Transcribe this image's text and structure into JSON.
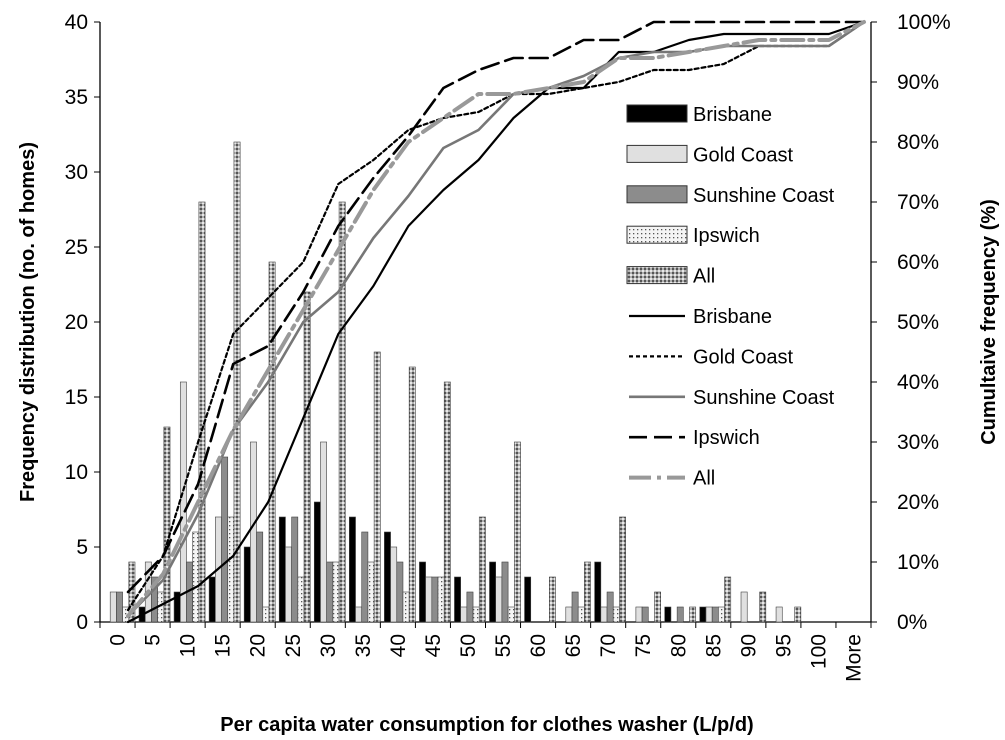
{
  "chart_data": {
    "type": "bar",
    "xlabel": "Per capita water consumption for clothes washer (L/p/d)",
    "ylabel": "Frequency distribution (no. of homes)",
    "y2label": "Cumultaive frequency (%)",
    "ylim": [
      0,
      40
    ],
    "y2lim": [
      0,
      100
    ],
    "y_ticks": [
      "0",
      "5",
      "10",
      "15",
      "20",
      "25",
      "30",
      "35",
      "40"
    ],
    "y2_ticks": [
      "0%",
      "10%",
      "20%",
      "30%",
      "40%",
      "50%",
      "60%",
      "70%",
      "80%",
      "90%",
      "100%"
    ],
    "categories": [
      "0",
      "5",
      "10",
      "15",
      "20",
      "25",
      "30",
      "35",
      "40",
      "45",
      "50",
      "55",
      "60",
      "65",
      "70",
      "75",
      "80",
      "85",
      "90",
      "95",
      "100",
      "More"
    ],
    "bar_series": [
      {
        "name": "Brisbane",
        "color": "#000000",
        "values": [
          0,
          1,
          2,
          3,
          5,
          7,
          8,
          7,
          6,
          4,
          3,
          4,
          3,
          0,
          4,
          0,
          1,
          1,
          0,
          0,
          0,
          0
        ]
      },
      {
        "name": "Gold Coast",
        "color": "#e6e6e6",
        "values": [
          2,
          4,
          16,
          7,
          12,
          5,
          12,
          1,
          5,
          3,
          1,
          3,
          0,
          1,
          1,
          1,
          0,
          1,
          2,
          1,
          0,
          0
        ]
      },
      {
        "name": "Sunshine Coast",
        "color": "#8c8c8c",
        "values": [
          2,
          3,
          4,
          11,
          6,
          7,
          4,
          6,
          4,
          3,
          2,
          4,
          0,
          2,
          2,
          1,
          1,
          1,
          0,
          0,
          0,
          0
        ]
      },
      {
        "name": "Ipswich",
        "color": "#f2f2f2",
        "values": [
          1,
          2,
          6,
          7,
          1,
          3,
          4,
          4,
          2,
          3,
          1,
          1,
          0,
          1,
          1,
          0,
          0,
          1,
          0,
          0,
          0,
          0
        ]
      },
      {
        "name": "All",
        "color": "#9a9a9a",
        "values": [
          4,
          13,
          28,
          32,
          24,
          22,
          28,
          18,
          17,
          16,
          7,
          12,
          3,
          4,
          7,
          2,
          1,
          3,
          2,
          1,
          0,
          0
        ]
      }
    ],
    "cumulative_series": [
      {
        "name": "Brisbane",
        "style": "solid",
        "color": "#000000",
        "values": [
          0,
          3,
          6,
          11,
          20,
          34,
          48,
          56,
          66,
          72,
          77,
          84,
          89,
          89,
          95,
          95,
          97,
          98,
          98,
          98,
          98,
          100
        ]
      },
      {
        "name": "Gold Coast",
        "style": "dotted",
        "color": "#000000",
        "values": [
          2,
          11,
          30,
          48,
          54,
          60,
          73,
          77,
          82,
          84,
          85,
          88,
          88,
          89,
          90,
          92,
          92,
          93,
          96,
          96,
          96,
          100
        ]
      },
      {
        "name": "Sunshine Coast",
        "style": "solid",
        "color": "#777777",
        "values": [
          1,
          7,
          18,
          32,
          40,
          50,
          55,
          64,
          71,
          79,
          82,
          88,
          89,
          91,
          94,
          95,
          95,
          96,
          96,
          96,
          96,
          100
        ]
      },
      {
        "name": "Ipswich",
        "style": "dashed",
        "color": "#000000",
        "values": [
          5,
          11,
          23,
          43,
          46,
          55,
          66,
          74,
          81,
          89,
          92,
          94,
          94,
          97,
          97,
          100,
          100,
          100,
          100,
          100,
          100,
          100
        ]
      },
      {
        "name": "All",
        "style": "dashdot",
        "color": "#999999",
        "values": [
          1,
          8,
          20,
          32,
          42,
          52,
          62,
          72,
          80,
          84,
          88,
          88,
          89,
          90,
          94,
          94,
          95,
          96,
          97,
          97,
          97,
          100
        ]
      }
    ],
    "legend": {
      "placement": "right",
      "bar_labels": [
        "Brisbane",
        "Gold Coast",
        "Sunshine Coast",
        "Ipswich",
        "All"
      ],
      "line_labels": [
        "Brisbane",
        "Gold Coast",
        "Sunshine Coast",
        "Ipswich",
        "All"
      ]
    }
  }
}
